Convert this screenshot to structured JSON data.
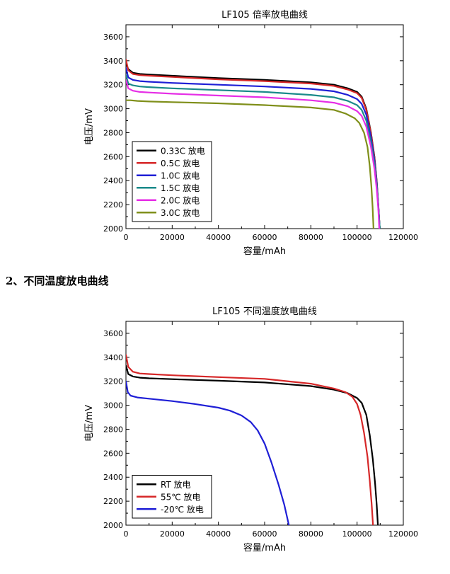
{
  "section_heading": "2、不同温度放电曲线",
  "chart_data": [
    {
      "type": "line",
      "title": "LF105 倍率放电曲线",
      "xlabel": "容量/mAh",
      "ylabel": "电压/mV",
      "xlim": [
        0,
        120000
      ],
      "ylim": [
        2000,
        3700
      ],
      "xticks": [
        0,
        20000,
        40000,
        60000,
        80000,
        100000,
        120000
      ],
      "yticks": [
        2000,
        2200,
        2400,
        2600,
        2800,
        3000,
        3200,
        3400,
        3600
      ],
      "legend_position": "bottom-left",
      "series": [
        {
          "name": "0.33C 放电",
          "color": "#000000",
          "x": [
            0,
            1000,
            3000,
            6000,
            10000,
            20000,
            40000,
            60000,
            80000,
            90000,
            96000,
            100000,
            102000,
            104000,
            106000,
            107500,
            108500,
            109200,
            109800
          ],
          "y": [
            3380,
            3330,
            3300,
            3290,
            3285,
            3275,
            3255,
            3240,
            3220,
            3200,
            3170,
            3140,
            3100,
            3000,
            2800,
            2600,
            2400,
            2200,
            2000
          ]
        },
        {
          "name": "0.5C 放电",
          "color": "#d62728",
          "x": [
            0,
            1000,
            3000,
            6000,
            10000,
            20000,
            40000,
            60000,
            80000,
            90000,
            96000,
            100000,
            102000,
            104000,
            106000,
            107500,
            108500,
            109200,
            109800
          ],
          "y": [
            3410,
            3320,
            3290,
            3280,
            3275,
            3265,
            3245,
            3230,
            3210,
            3190,
            3160,
            3130,
            3090,
            2990,
            2790,
            2590,
            2390,
            2190,
            2000
          ]
        },
        {
          "name": "1.0C 放电",
          "color": "#1f1fd6",
          "x": [
            0,
            1000,
            3000,
            6000,
            10000,
            20000,
            40000,
            60000,
            80000,
            90000,
            96000,
            100000,
            102000,
            104000,
            106000,
            107500,
            108500,
            109200,
            109800
          ],
          "y": [
            3340,
            3260,
            3240,
            3230,
            3225,
            3215,
            3200,
            3185,
            3165,
            3145,
            3115,
            3080,
            3040,
            2950,
            2760,
            2570,
            2380,
            2190,
            2000
          ]
        },
        {
          "name": "1.5C 放电",
          "color": "#1a8a8a",
          "x": [
            0,
            1000,
            3000,
            6000,
            10000,
            20000,
            40000,
            60000,
            80000,
            90000,
            96000,
            100000,
            102000,
            104000,
            106000,
            107500,
            108500,
            109200,
            109800
          ],
          "y": [
            3280,
            3210,
            3195,
            3185,
            3180,
            3170,
            3155,
            3140,
            3115,
            3095,
            3065,
            3030,
            2990,
            2900,
            2720,
            2540,
            2360,
            2180,
            2000
          ]
        },
        {
          "name": "2.0C 放电",
          "color": "#e62ee6",
          "x": [
            0,
            1000,
            3000,
            6000,
            10000,
            20000,
            40000,
            60000,
            80000,
            90000,
            96000,
            100000,
            102000,
            104000,
            106000,
            107500,
            108500,
            109200,
            109600
          ],
          "y": [
            3240,
            3170,
            3150,
            3140,
            3135,
            3125,
            3110,
            3095,
            3070,
            3050,
            3020,
            2980,
            2940,
            2850,
            2680,
            2500,
            2330,
            2160,
            2000
          ]
        },
        {
          "name": "3.0C 放电",
          "color": "#7f8f1a",
          "x": [
            0,
            2000,
            5000,
            10000,
            20000,
            40000,
            60000,
            80000,
            90000,
            95000,
            99000,
            101000,
            103000,
            104500,
            105500,
            106200,
            106700,
            107100
          ],
          "y": [
            3070,
            3070,
            3065,
            3060,
            3055,
            3045,
            3030,
            3010,
            2990,
            2960,
            2920,
            2880,
            2800,
            2680,
            2520,
            2350,
            2180,
            2000
          ]
        }
      ]
    },
    {
      "type": "line",
      "title": "LF105 不同温度放电曲线",
      "xlabel": "容量/mAh",
      "ylabel": "电压/mV",
      "xlim": [
        0,
        120000
      ],
      "ylim": [
        2000,
        3700
      ],
      "xticks": [
        0,
        20000,
        40000,
        60000,
        80000,
        100000,
        120000
      ],
      "yticks": [
        2000,
        2200,
        2400,
        2600,
        2800,
        3000,
        3200,
        3400,
        3600
      ],
      "legend_position": "bottom-left",
      "series": [
        {
          "name": "RT 放电",
          "color": "#000000",
          "x": [
            0,
            1000,
            3000,
            6000,
            10000,
            20000,
            40000,
            60000,
            80000,
            90000,
            96000,
            100000,
            102000,
            104000,
            105500,
            106800,
            107800,
            108500,
            109000
          ],
          "y": [
            3330,
            3260,
            3240,
            3230,
            3225,
            3218,
            3205,
            3190,
            3160,
            3130,
            3100,
            3060,
            3020,
            2920,
            2750,
            2550,
            2350,
            2170,
            2000
          ]
        },
        {
          "name": "55℃ 放电",
          "color": "#d62728",
          "x": [
            0,
            1000,
            3000,
            6000,
            10000,
            20000,
            40000,
            60000,
            80000,
            90000,
            95000,
            98000,
            100000,
            101500,
            103000,
            104500,
            105500,
            106300,
            106900
          ],
          "y": [
            3420,
            3320,
            3280,
            3265,
            3260,
            3250,
            3235,
            3220,
            3180,
            3140,
            3110,
            3070,
            3010,
            2920,
            2770,
            2570,
            2370,
            2180,
            2000
          ]
        },
        {
          "name": "-20℃ 放电",
          "color": "#1f1fd6",
          "x": [
            0,
            800,
            2000,
            5000,
            10000,
            20000,
            30000,
            40000,
            45000,
            50000,
            54000,
            57000,
            60000,
            63000,
            66000,
            68500,
            70500
          ],
          "y": [
            3200,
            3110,
            3080,
            3065,
            3055,
            3035,
            3010,
            2980,
            2955,
            2915,
            2860,
            2790,
            2680,
            2520,
            2340,
            2170,
            2000
          ]
        }
      ]
    }
  ]
}
